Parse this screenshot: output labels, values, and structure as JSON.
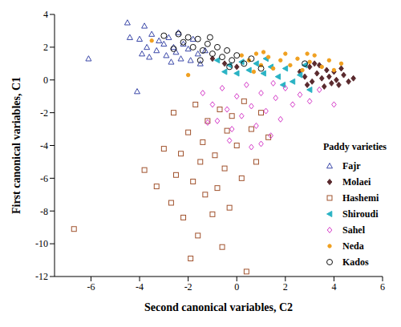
{
  "chart_data": {
    "type": "scatter",
    "x_label": "Second canonical variables, C2",
    "y_label": "First canonical variables, C1",
    "legend_title": "Paddy varieties",
    "legend": "right",
    "grid": false,
    "xlim": [
      -7.5,
      6
    ],
    "xticks": [
      -6,
      -4,
      -2,
      0,
      2,
      4,
      6
    ],
    "ylim": [
      -12,
      4
    ],
    "yticks": [
      4,
      2,
      0,
      -2,
      -4,
      -6,
      -8,
      -10,
      -12
    ],
    "series": [
      {
        "name": "Fajr",
        "color": "#3a47a8",
        "marker": "open_triangle",
        "x": [
          -4.5,
          -4.4,
          -3.8,
          -6.1,
          -4.1,
          -4.0,
          -3.7,
          -3.5,
          -3.3,
          -3.2,
          -3.0,
          -2.9,
          -2.8,
          -2.6,
          -2.5,
          -2.4,
          -2.3,
          -2.2,
          -2.0,
          -1.9,
          -1.8,
          -1.6,
          -1.5,
          -3.6,
          -2.7,
          -1.3,
          -3.9
        ],
        "values": [
          3.5,
          2.6,
          3.3,
          1.3,
          -0.7,
          2.5,
          2.0,
          2.8,
          1.8,
          2.4,
          2.2,
          1.5,
          2.6,
          2.0,
          1.7,
          2.9,
          1.3,
          2.2,
          1.9,
          1.2,
          2.5,
          1.6,
          1.0,
          1.4,
          1.1,
          1.8,
          1.6
        ]
      },
      {
        "name": "Molaei",
        "color": "#5a2a2e",
        "marker": "diamond",
        "x": [
          2.6,
          2.8,
          3.0,
          3.1,
          3.3,
          3.4,
          3.5,
          3.6,
          3.7,
          3.8,
          3.9,
          4.0,
          4.1,
          4.2,
          4.4,
          4.6,
          4.8,
          3.2,
          2.9,
          4.3,
          -0.5,
          0.0,
          -1.0
        ],
        "values": [
          0.5,
          0.2,
          0.8,
          -0.1,
          0.4,
          0.9,
          0.1,
          -0.4,
          0.6,
          0.2,
          -0.2,
          0.5,
          0.0,
          -0.3,
          0.3,
          -0.1,
          0.1,
          1.0,
          -0.3,
          0.7,
          1.0,
          0.8,
          1.3
        ]
      },
      {
        "name": "Hashemi",
        "color": "#a0522d",
        "marker": "open_square",
        "x": [
          -6.7,
          -3.3,
          -3.0,
          -2.7,
          -2.5,
          -2.3,
          -2.2,
          -2.0,
          -1.9,
          -1.8,
          -1.6,
          -1.5,
          -1.4,
          -1.3,
          -1.2,
          -1.0,
          -0.9,
          -0.8,
          -0.7,
          -0.6,
          -0.5,
          -0.4,
          -0.3,
          -0.2,
          0.0,
          0.2,
          0.3,
          0.4,
          0.6,
          0.8,
          1.0,
          1.3,
          -2.6,
          -1.7,
          -3.8
        ],
        "values": [
          -9.1,
          -6.5,
          -4.2,
          -7.5,
          -5.8,
          -4.5,
          -8.4,
          -3.2,
          -10.9,
          -6.2,
          -9.5,
          -5.0,
          -3.8,
          -7.0,
          -2.5,
          -8.2,
          -4.6,
          -6.6,
          -1.8,
          -10.2,
          -5.4,
          -3.1,
          -7.8,
          -2.2,
          -4.0,
          -6.0,
          -1.3,
          -11.7,
          -3.0,
          -5.0,
          -2.0,
          -3.5,
          -2.0,
          -1.5,
          -5.5
        ]
      },
      {
        "name": "Shiroudi",
        "color": "#2ab3c4",
        "marker": "triangle_left",
        "x": [
          -0.8,
          -0.3,
          0.2,
          0.5,
          0.8,
          1.1,
          1.4,
          1.7,
          2.0,
          2.3,
          2.6,
          3.0,
          1.2,
          0.0,
          1.9,
          2.8,
          -0.5
        ],
        "values": [
          1.2,
          0.9,
          1.1,
          0.6,
          1.0,
          0.4,
          0.8,
          0.2,
          0.7,
          -0.1,
          0.3,
          -0.6,
          1.3,
          0.4,
          -0.3,
          0.9,
          0.5
        ]
      },
      {
        "name": "Sahel",
        "color": "#d53cc8",
        "marker": "open_diamond",
        "x": [
          -1.4,
          -1.0,
          -0.8,
          -0.6,
          -0.4,
          -0.2,
          0.0,
          0.2,
          0.4,
          0.6,
          0.8,
          1.0,
          1.2,
          1.4,
          1.6,
          1.8,
          2.0,
          2.3,
          2.6,
          3.0,
          3.4,
          4.0,
          0.6,
          1.0,
          -0.3,
          1.5,
          -1.2
        ],
        "values": [
          -0.8,
          -1.5,
          -2.5,
          -0.5,
          -1.8,
          -3.0,
          -1.0,
          -2.2,
          -0.3,
          -1.6,
          -2.8,
          -0.8,
          -1.9,
          -3.4,
          -1.1,
          -2.4,
          -0.5,
          -1.5,
          -0.9,
          -1.3,
          -0.6,
          -1.5,
          -4.1,
          -3.9,
          -3.7,
          -0.2,
          -2.6
        ]
      },
      {
        "name": "Neda",
        "color": "#f0a020",
        "marker": "dot",
        "x": [
          0.2,
          0.5,
          0.8,
          1.0,
          1.3,
          1.5,
          1.8,
          2.0,
          2.2,
          2.5,
          2.7,
          3.0,
          3.2,
          3.5,
          3.8,
          4.0,
          4.3,
          1.1,
          2.9,
          0.7,
          -2.0,
          -3.5
        ],
        "values": [
          1.5,
          1.2,
          1.6,
          0.9,
          1.4,
          0.7,
          1.2,
          1.6,
          0.9,
          1.3,
          0.6,
          1.1,
          1.5,
          0.8,
          1.2,
          0.6,
          1.0,
          1.7,
          1.6,
          0.5,
          0.3,
          2.4
        ]
      },
      {
        "name": "Kados",
        "color": "#111111",
        "marker": "open_circle",
        "x": [
          -2.4,
          -2.2,
          -2.0,
          -1.8,
          -1.6,
          -1.4,
          -1.2,
          -1.0,
          -0.8,
          -0.6,
          -0.4,
          -0.2,
          0.0,
          0.3,
          0.6,
          -1.5,
          -1.1,
          -0.3,
          -2.6,
          1.0,
          -3.0,
          2.8
        ],
        "values": [
          2.8,
          2.3,
          2.6,
          2.0,
          2.5,
          1.8,
          2.2,
          1.6,
          2.0,
          1.4,
          1.8,
          1.2,
          1.5,
          1.0,
          1.3,
          1.2,
          2.6,
          0.8,
          1.9,
          0.7,
          2.7,
          1.0
        ]
      }
    ]
  }
}
